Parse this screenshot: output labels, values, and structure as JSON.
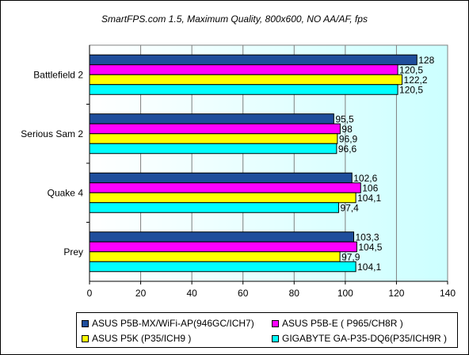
{
  "chart_data": {
    "type": "bar",
    "orientation": "horizontal",
    "title": "SmartFPS.com 1.5, Maximum Quality, 800x600, NO AA/AF, fps",
    "categories": [
      "Battlefield 2",
      "Serious Sam 2",
      "Quake 4",
      "Prey"
    ],
    "series": [
      {
        "name": "ASUS P5B-MX/WiFi-AP(946GC/ICH7)",
        "color": "#1f4e9c",
        "values": [
          128,
          95.5,
          102.6,
          103.3
        ],
        "labels": [
          "128",
          "95,5",
          "102,6",
          "103,3"
        ]
      },
      {
        "name": "ASUS P5B-E ( P965/CH8R )",
        "color": "#ff00ff",
        "values": [
          120.5,
          98,
          106,
          104.5
        ],
        "labels": [
          "120,5",
          "98",
          "106",
          "104,5"
        ]
      },
      {
        "name": "ASUS P5K (P35/ICH9 )",
        "color": "#ffff00",
        "values": [
          122.2,
          96.9,
          104.1,
          97.9
        ],
        "labels": [
          "122,2",
          "96,9",
          "104,1",
          "97,9"
        ]
      },
      {
        "name": "GIGABYTE GA-P35-DQ6(P35/ICH9R )",
        "color": "#00ffff",
        "values": [
          120.5,
          96.6,
          97.4,
          104.1
        ],
        "labels": [
          "120,5",
          "96,6",
          "97,4",
          "104,1"
        ]
      }
    ],
    "xlim": [
      0,
      140
    ],
    "xticks": [
      "0",
      "20",
      "40",
      "60",
      "80",
      "100",
      "120",
      "140"
    ],
    "grid": "vertical",
    "legend": "bottom",
    "plot_background": "gradient white to light cyan"
  }
}
